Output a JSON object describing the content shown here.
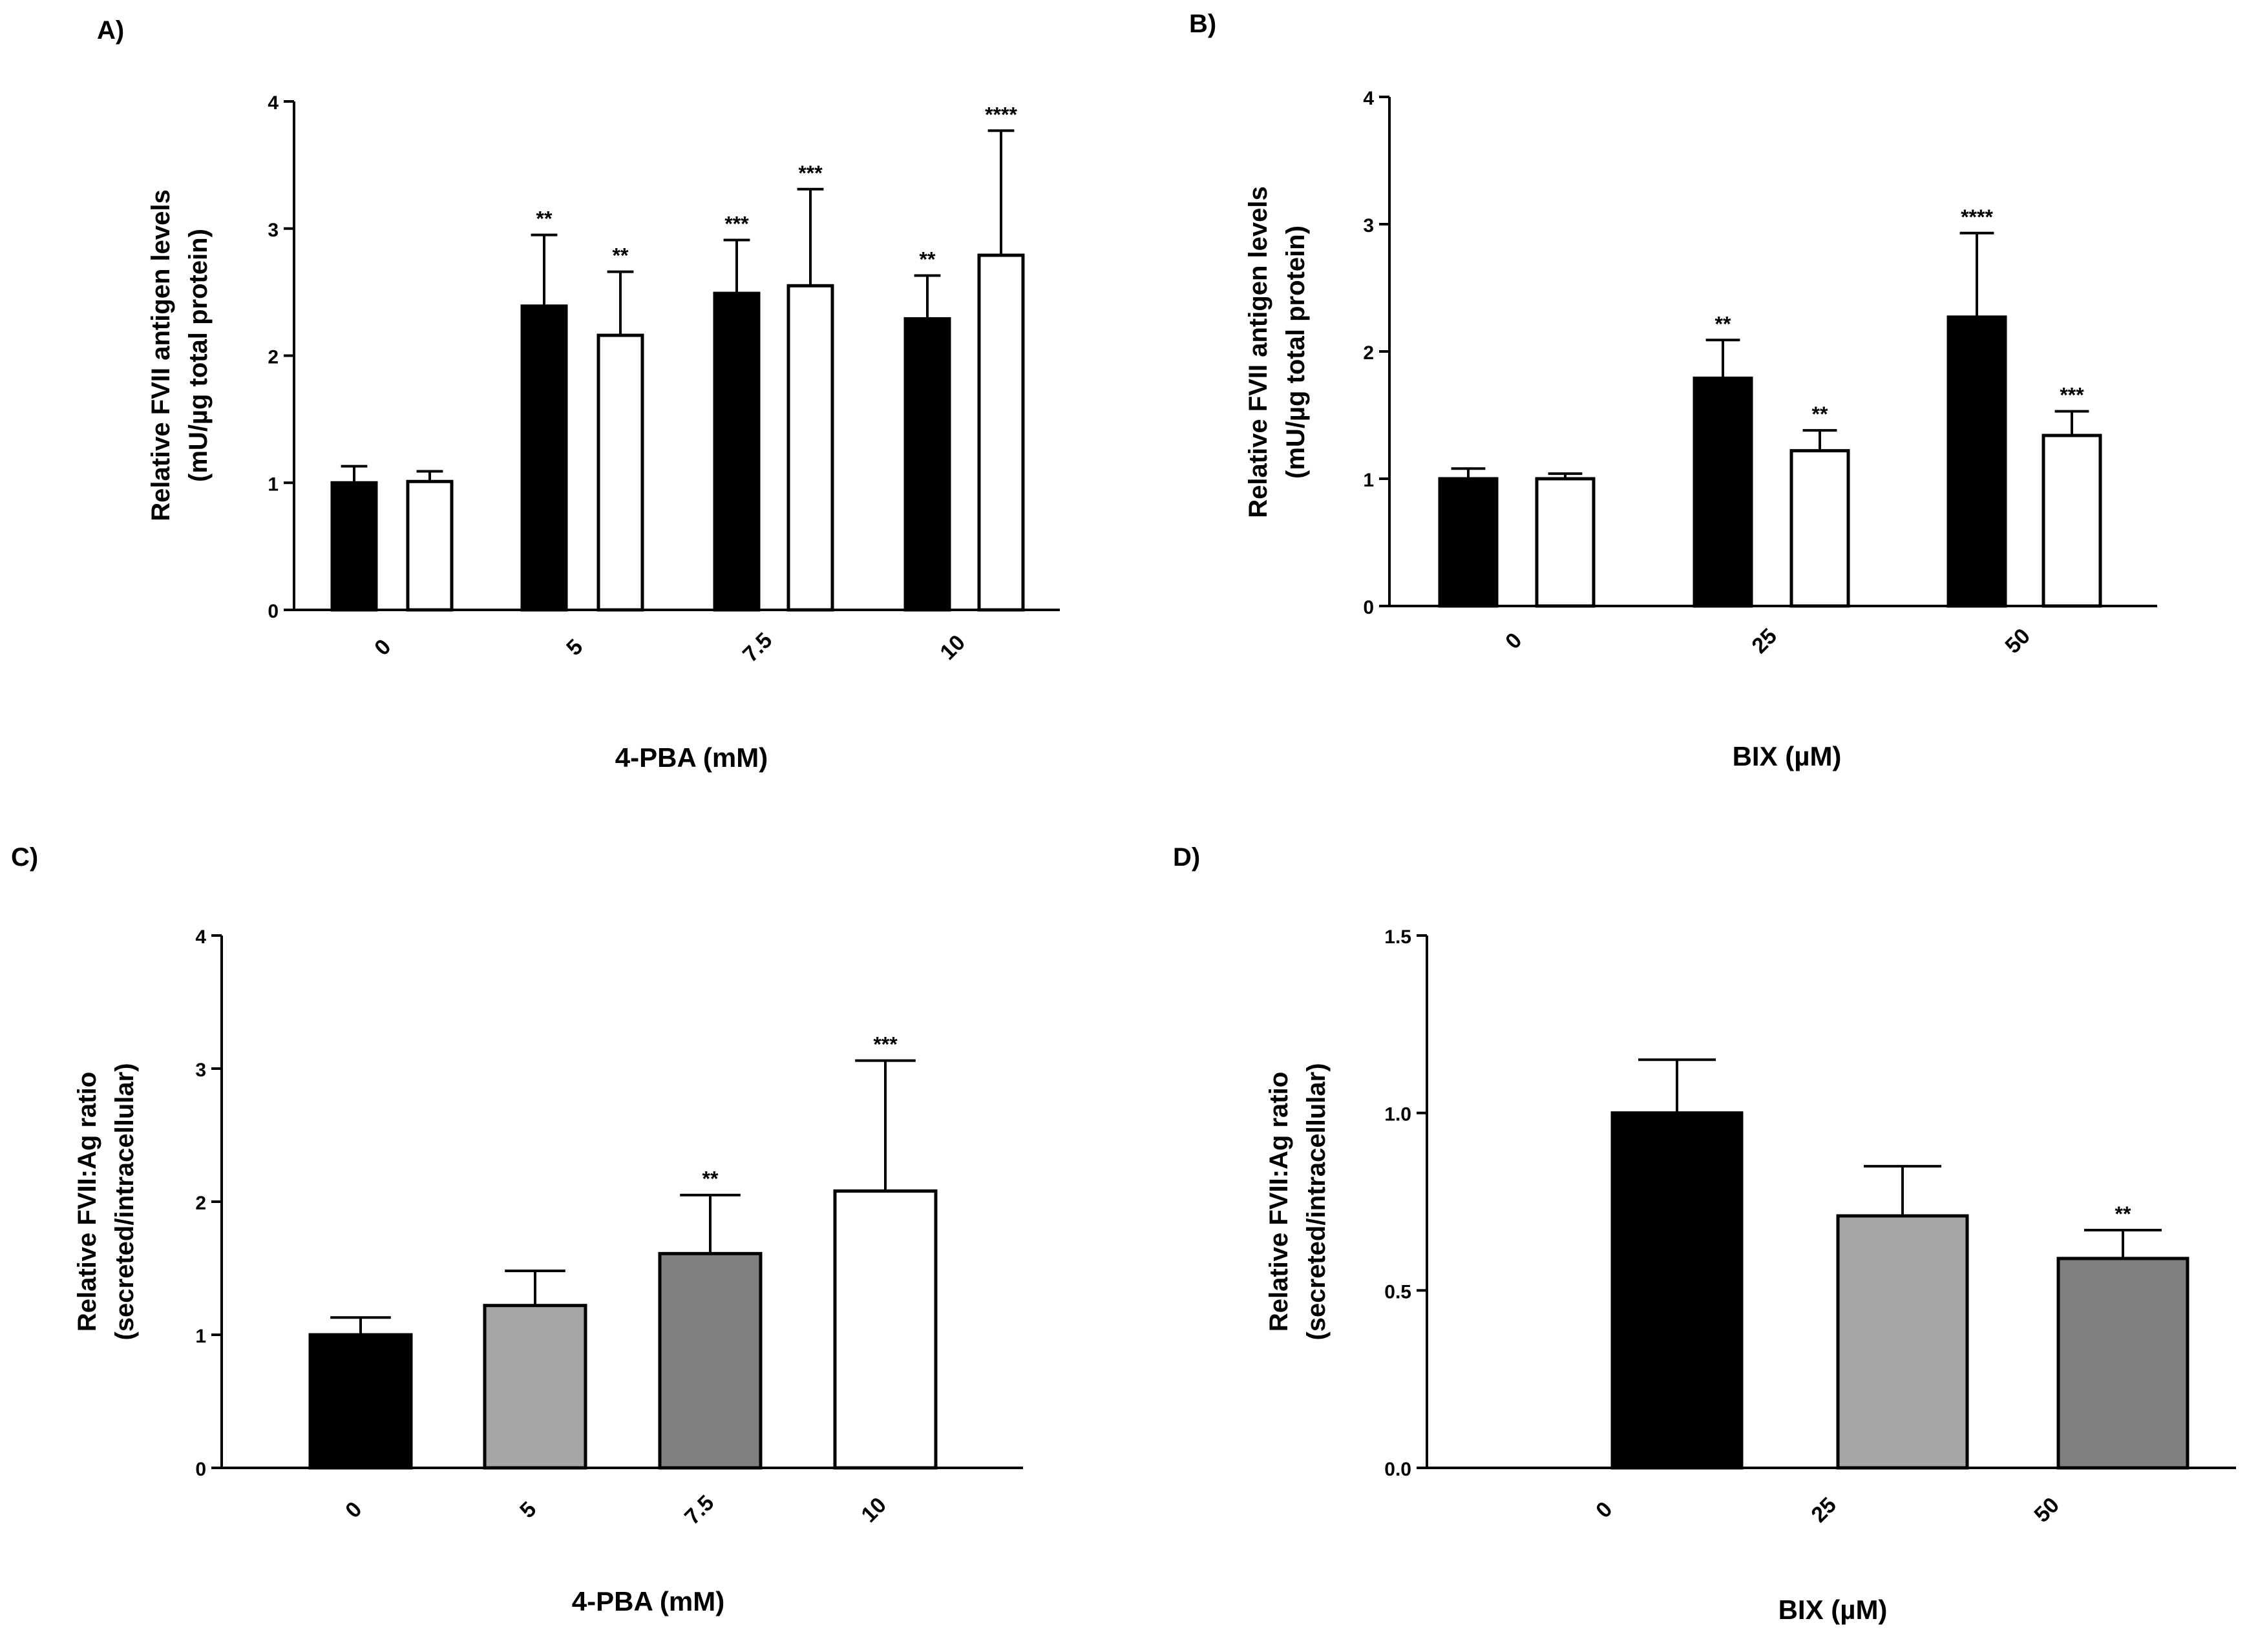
{
  "chart_data": [
    {
      "type": "bar",
      "panel_label": "A)",
      "xlabel": "4-PBA (mM)",
      "ylabel_line1": "Relative FVII antigen levels",
      "ylabel_line2": "(mU/µg total protein)",
      "ylim": [
        0,
        4
      ],
      "yticks": [
        "0",
        "1",
        "2",
        "3",
        "4"
      ],
      "ytick_values": [
        0,
        1,
        2,
        3,
        4
      ],
      "categories": [
        "0",
        "5",
        "7.5",
        "10"
      ],
      "series": [
        {
          "name": "filled",
          "color": "#000000",
          "values": [
            1.0,
            2.39,
            2.49,
            2.29
          ],
          "errors": [
            0.13,
            0.56,
            0.42,
            0.34
          ],
          "significance": [
            "",
            "**",
            "***",
            "**"
          ]
        },
        {
          "name": "open",
          "color": "#ffffff",
          "values": [
            1.01,
            2.16,
            2.55,
            2.79
          ],
          "errors": [
            0.08,
            0.5,
            0.76,
            0.98
          ],
          "significance": [
            "",
            "**",
            "***",
            "****"
          ]
        }
      ]
    },
    {
      "type": "bar",
      "panel_label": "B)",
      "xlabel": "BIX (µM)",
      "ylabel_line1": "Relative FVII antigen levels",
      "ylabel_line2": "(mU/µg total protein)",
      "ylim": [
        0,
        4
      ],
      "yticks": [
        "0",
        "1",
        "2",
        "3",
        "4"
      ],
      "ytick_values": [
        0,
        1,
        2,
        3,
        4
      ],
      "categories": [
        "0",
        "25",
        "50"
      ],
      "series": [
        {
          "name": "filled",
          "color": "#000000",
          "values": [
            1.0,
            1.79,
            2.27
          ],
          "errors": [
            0.08,
            0.3,
            0.66
          ],
          "significance": [
            "",
            "**",
            "****"
          ]
        },
        {
          "name": "open",
          "color": "#ffffff",
          "values": [
            1.0,
            1.22,
            1.34
          ],
          "errors": [
            0.04,
            0.16,
            0.19
          ],
          "significance": [
            "",
            "**",
            "***"
          ]
        }
      ]
    },
    {
      "type": "bar",
      "panel_label": "C)",
      "xlabel": "4-PBA (mM)",
      "ylabel_line1": "Relative FVII:Ag ratio",
      "ylabel_line2": "(secreted/intracellular)",
      "ylim": [
        0,
        4
      ],
      "yticks": [
        "0",
        "1",
        "2",
        "3",
        "4"
      ],
      "ytick_values": [
        0,
        1,
        2,
        3,
        4
      ],
      "categories": [
        "0",
        "5",
        "7.5",
        "10"
      ],
      "bar_colors": [
        "#000000",
        "#a6a6a6",
        "#7f7f7f",
        "#ffffff"
      ],
      "values": [
        1.0,
        1.22,
        1.61,
        2.08
      ],
      "errors": [
        0.13,
        0.26,
        0.44,
        0.98
      ],
      "significance": [
        "",
        "",
        "**",
        "***"
      ]
    },
    {
      "type": "bar",
      "panel_label": "D)",
      "xlabel": "BIX (µM)",
      "ylabel_line1": "Relative FVII:Ag ratio",
      "ylabel_line2": "(secreted/intracellular)",
      "ylim": [
        0,
        1.5
      ],
      "yticks": [
        "0.0",
        "0.5",
        "1.0",
        "1.5"
      ],
      "ytick_values": [
        0,
        0.5,
        1.0,
        1.5
      ],
      "categories": [
        "0",
        "25",
        "50"
      ],
      "bar_colors": [
        "#000000",
        "#a6a6a6",
        "#7f7f7f"
      ],
      "values": [
        1.0,
        0.71,
        0.59
      ],
      "errors": [
        0.15,
        0.14,
        0.08
      ],
      "significance": [
        "",
        "",
        "**"
      ]
    }
  ]
}
